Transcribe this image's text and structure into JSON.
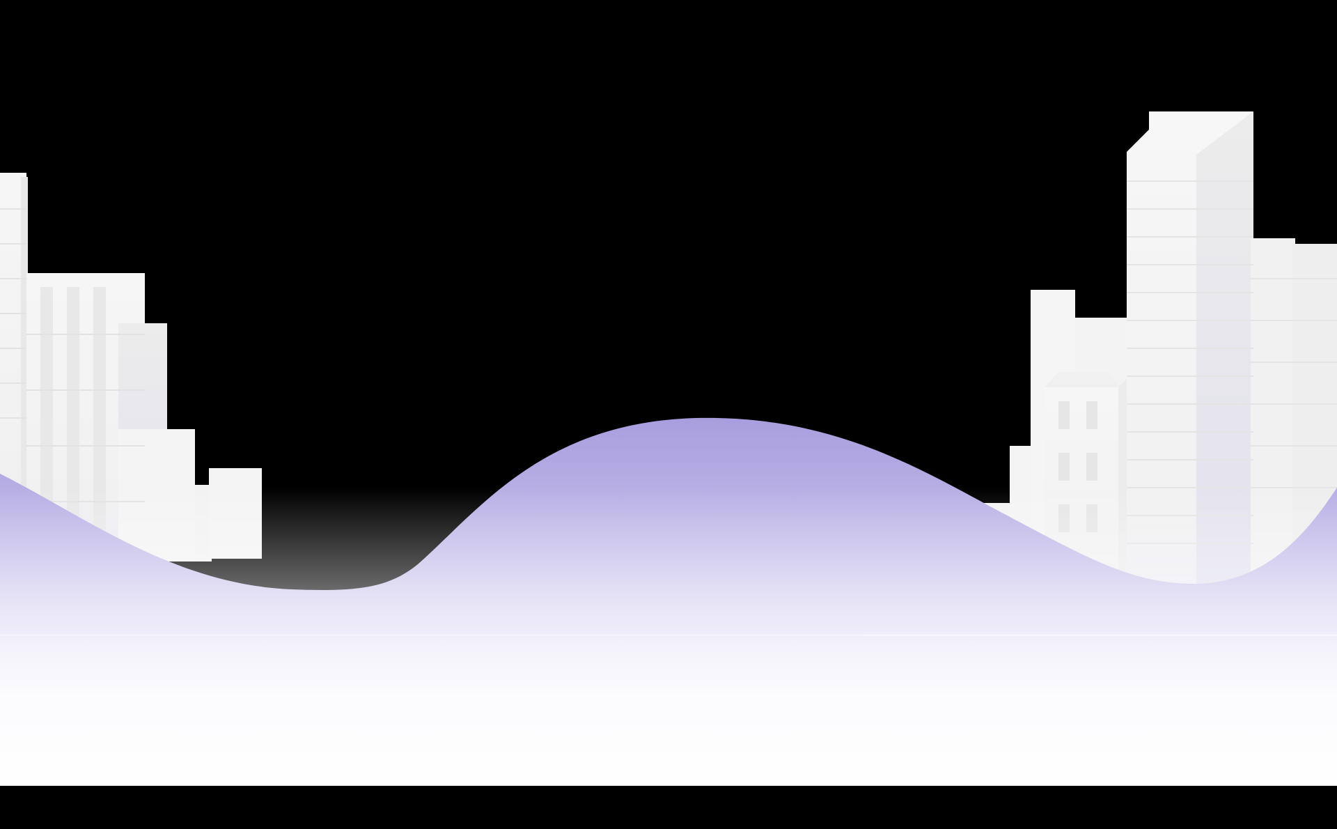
{
  "scene": {
    "background": "#000000",
    "hill_color_top": "#a89ede",
    "hill_color_bottom": "#ffffff",
    "building_color": "#f4f4f4",
    "building_shade": "#e6e6e6",
    "window_color": "#e9e9e9",
    "line_color": "#dcdcdc"
  }
}
